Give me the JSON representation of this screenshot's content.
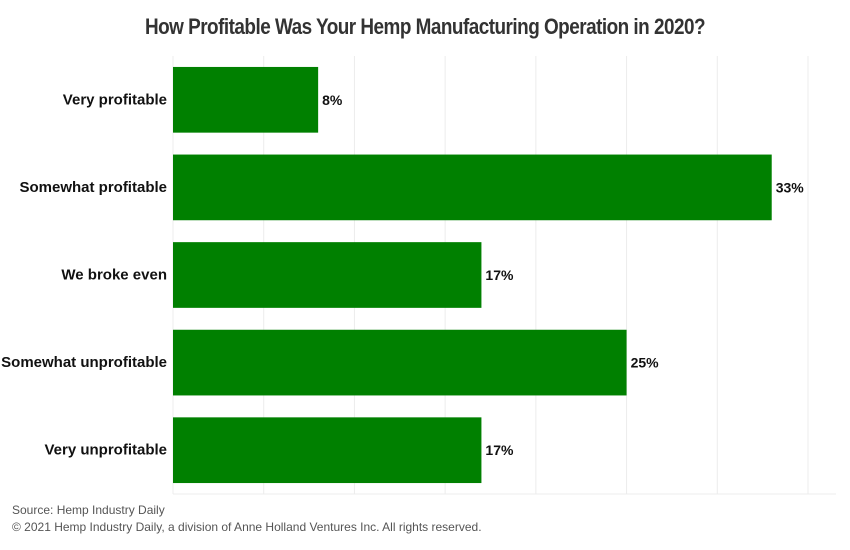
{
  "chart_data": {
    "type": "bar",
    "orientation": "horizontal",
    "title": "How Profitable Was Your Hemp Manufacturing Operation in 2020?",
    "categories": [
      "Very profitable",
      "Somewhat profitable",
      "We broke even",
      "Somewhat unprofitable",
      "Very unprofitable"
    ],
    "values": [
      8,
      33,
      17,
      25,
      17
    ],
    "value_suffix": "%",
    "xlim": [
      0,
      35
    ],
    "grid": true,
    "bar_color": "#008000"
  },
  "footer": {
    "source": "Source: Hemp Industry Daily",
    "copyright": "© 2021 Hemp Industry Daily, a division of Anne Holland Ventures Inc. All rights reserved."
  }
}
